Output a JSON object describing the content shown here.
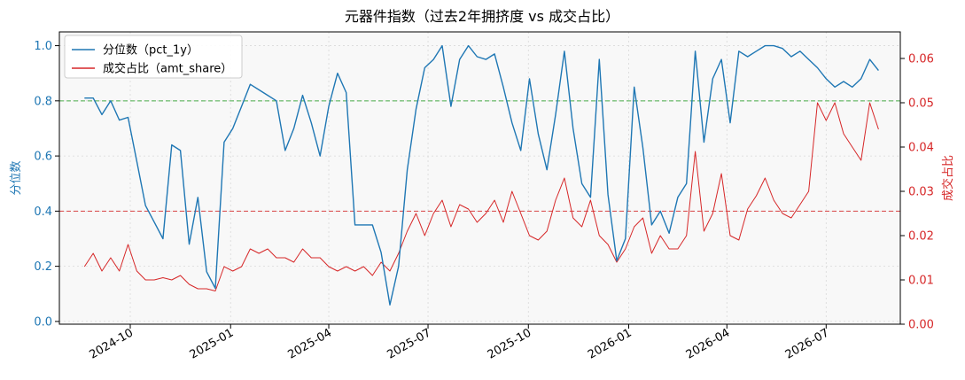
{
  "chart_data": {
    "type": "line",
    "title": "元器件指数（过去2年拥挤度 vs 成交占比）",
    "xlabel": "",
    "ylabel_left": "分位数",
    "ylabel_right": "成交占比",
    "ylim_left": [
      -0.01,
      1.05
    ],
    "ylim_right": [
      0,
      0.066
    ],
    "yticks_left": [
      "0.0",
      "0.2",
      "0.4",
      "0.6",
      "0.8",
      "1.0"
    ],
    "yticks_right": [
      "0.00",
      "0.01",
      "0.02",
      "0.03",
      "0.04",
      "0.05",
      "0.06"
    ],
    "xticks": [
      "2024-10",
      "2025-01",
      "2025-04",
      "2025-07",
      "2025-10",
      "2026-01",
      "2026-04",
      "2026-07"
    ],
    "grid": true,
    "legend": "upper-left",
    "hlines": [
      {
        "axis": "left",
        "value": 0.8,
        "color": "#2ca02c"
      },
      {
        "axis": "left",
        "value": 0.4,
        "color": "#d62728"
      }
    ],
    "series": [
      {
        "name": "分位数（pct_1y）",
        "axis": "left",
        "color": "#1f77b4",
        "x": [
          "2024-08-20",
          "2024-08-28",
          "2024-09-05",
          "2024-09-13",
          "2024-09-21",
          "2024-09-29",
          "2024-10-07",
          "2024-10-15",
          "2024-10-23",
          "2024-10-31",
          "2024-11-08",
          "2024-11-16",
          "2024-11-24",
          "2024-12-02",
          "2024-12-10",
          "2024-12-18",
          "2024-12-26",
          "2025-01-03",
          "2025-01-11",
          "2025-01-19",
          "2025-01-27",
          "2025-02-04",
          "2025-02-12",
          "2025-02-20",
          "2025-02-28",
          "2025-03-08",
          "2025-03-16",
          "2025-03-24",
          "2025-04-01",
          "2025-04-09",
          "2025-04-17",
          "2025-04-25",
          "2025-05-03",
          "2025-05-11",
          "2025-05-19",
          "2025-05-27",
          "2025-06-04",
          "2025-06-12",
          "2025-06-20",
          "2025-06-28",
          "2025-07-06",
          "2025-07-14",
          "2025-07-22",
          "2025-07-30",
          "2025-08-07",
          "2025-08-15",
          "2025-08-23",
          "2025-08-31",
          "2025-09-08",
          "2025-09-16",
          "2025-09-24",
          "2025-10-02",
          "2025-10-10",
          "2025-10-18",
          "2025-10-26",
          "2025-11-03",
          "2025-11-11",
          "2025-11-19",
          "2025-11-27",
          "2025-12-05",
          "2025-12-13",
          "2025-12-21",
          "2025-12-29",
          "2026-01-06",
          "2026-01-14",
          "2026-01-22",
          "2026-01-30",
          "2026-02-07",
          "2026-02-15",
          "2026-02-23",
          "2026-03-03",
          "2026-03-11",
          "2026-03-19",
          "2026-03-27",
          "2026-04-04",
          "2026-04-12",
          "2026-04-20",
          "2026-04-28",
          "2026-05-06",
          "2026-05-14",
          "2026-05-22",
          "2026-05-30",
          "2026-06-07",
          "2026-06-15",
          "2026-06-23",
          "2026-07-01",
          "2026-07-09",
          "2026-07-17",
          "2026-07-25",
          "2026-08-02",
          "2026-08-10",
          "2026-08-18"
        ],
        "values": [
          0.81,
          0.81,
          0.75,
          0.8,
          0.73,
          0.74,
          0.58,
          0.42,
          0.36,
          0.3,
          0.64,
          0.62,
          0.28,
          0.45,
          0.18,
          0.12,
          0.65,
          0.7,
          0.78,
          0.86,
          0.84,
          0.82,
          0.8,
          0.62,
          0.7,
          0.82,
          0.72,
          0.6,
          0.78,
          0.9,
          0.83,
          0.35,
          0.35,
          0.35,
          0.25,
          0.06,
          0.2,
          0.55,
          0.77,
          0.92,
          0.95,
          1.0,
          0.78,
          0.95,
          1.0,
          0.96,
          0.95,
          0.97,
          0.85,
          0.72,
          0.62,
          0.88,
          0.68,
          0.55,
          0.75,
          0.98,
          0.7,
          0.5,
          0.45,
          0.95,
          0.46,
          0.22,
          0.3,
          0.85,
          0.63,
          0.35,
          0.4,
          0.32,
          0.45,
          0.5,
          0.98,
          0.65,
          0.88,
          0.95,
          0.72,
          0.98,
          0.96,
          0.98,
          1.0,
          1.0,
          0.99,
          0.96,
          0.98,
          0.95,
          0.92,
          0.88,
          0.85,
          0.87,
          0.85,
          0.88,
          0.95,
          0.91
        ]
      },
      {
        "name": "成交占比（amt_share）",
        "axis": "right",
        "color": "#d62728",
        "x": [
          "2024-08-20",
          "2024-08-28",
          "2024-09-05",
          "2024-09-13",
          "2024-09-21",
          "2024-09-29",
          "2024-10-07",
          "2024-10-15",
          "2024-10-23",
          "2024-10-31",
          "2024-11-08",
          "2024-11-16",
          "2024-11-24",
          "2024-12-02",
          "2024-12-10",
          "2024-12-18",
          "2024-12-26",
          "2025-01-03",
          "2025-01-11",
          "2025-01-19",
          "2025-01-27",
          "2025-02-04",
          "2025-02-12",
          "2025-02-20",
          "2025-02-28",
          "2025-03-08",
          "2025-03-16",
          "2025-03-24",
          "2025-04-01",
          "2025-04-09",
          "2025-04-17",
          "2025-04-25",
          "2025-05-03",
          "2025-05-11",
          "2025-05-19",
          "2025-05-27",
          "2025-06-04",
          "2025-06-12",
          "2025-06-20",
          "2025-06-28",
          "2025-07-06",
          "2025-07-14",
          "2025-07-22",
          "2025-07-30",
          "2025-08-07",
          "2025-08-15",
          "2025-08-23",
          "2025-08-31",
          "2025-09-08",
          "2025-09-16",
          "2025-09-24",
          "2025-10-02",
          "2025-10-10",
          "2025-10-18",
          "2025-10-26",
          "2025-11-03",
          "2025-11-11",
          "2025-11-19",
          "2025-11-27",
          "2025-12-05",
          "2025-12-13",
          "2025-12-21",
          "2025-12-29",
          "2026-01-06",
          "2026-01-14",
          "2026-01-22",
          "2026-01-30",
          "2026-02-07",
          "2026-02-15",
          "2026-02-23",
          "2026-03-03",
          "2026-03-11",
          "2026-03-19",
          "2026-03-27",
          "2026-04-04",
          "2026-04-12",
          "2026-04-20",
          "2026-04-28",
          "2026-05-06",
          "2026-05-14",
          "2026-05-22",
          "2026-05-30",
          "2026-06-07",
          "2026-06-15",
          "2026-06-23",
          "2026-07-01",
          "2026-07-09",
          "2026-07-17",
          "2026-07-25",
          "2026-08-02",
          "2026-08-10",
          "2026-08-18"
        ],
        "values": [
          0.013,
          0.016,
          0.012,
          0.015,
          0.012,
          0.018,
          0.012,
          0.01,
          0.01,
          0.0105,
          0.01,
          0.011,
          0.009,
          0.008,
          0.008,
          0.0075,
          0.013,
          0.012,
          0.013,
          0.017,
          0.016,
          0.017,
          0.015,
          0.015,
          0.014,
          0.017,
          0.015,
          0.015,
          0.013,
          0.012,
          0.013,
          0.012,
          0.013,
          0.011,
          0.014,
          0.012,
          0.016,
          0.021,
          0.025,
          0.02,
          0.025,
          0.028,
          0.022,
          0.027,
          0.026,
          0.023,
          0.025,
          0.028,
          0.023,
          0.03,
          0.025,
          0.02,
          0.019,
          0.021,
          0.028,
          0.033,
          0.024,
          0.022,
          0.028,
          0.02,
          0.018,
          0.014,
          0.017,
          0.022,
          0.024,
          0.016,
          0.02,
          0.017,
          0.017,
          0.02,
          0.039,
          0.021,
          0.025,
          0.034,
          0.02,
          0.019,
          0.026,
          0.029,
          0.033,
          0.028,
          0.025,
          0.024,
          0.027,
          0.03,
          0.05,
          0.046,
          0.05,
          0.043,
          0.04,
          0.037,
          0.05,
          0.044
        ]
      }
    ]
  }
}
